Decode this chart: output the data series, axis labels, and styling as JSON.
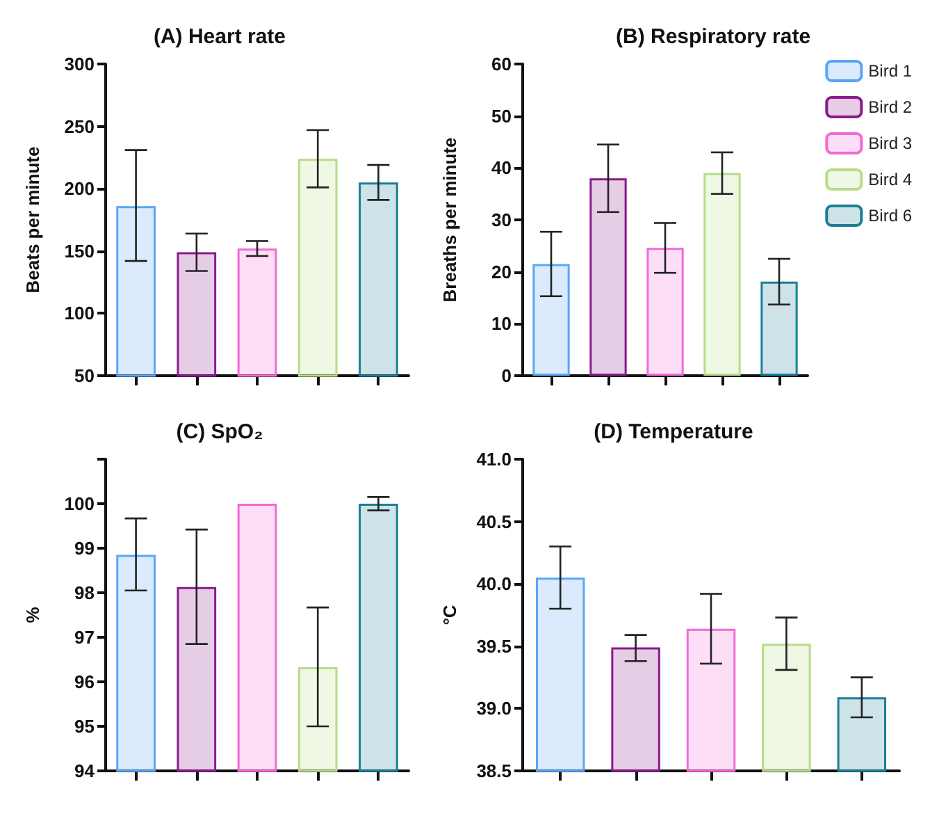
{
  "chart_data": [
    {
      "type": "bar",
      "title": "(A) Heart rate",
      "ylabel": "Beats per minute",
      "categories": [
        null,
        null,
        null,
        null,
        null
      ],
      "ylim": [
        50,
        300
      ],
      "yticks": [
        50,
        100,
        150,
        200,
        250,
        300
      ],
      "grid": false,
      "legend": false,
      "series": [
        {
          "color": "#5aa6f5",
          "values": [
            186,
            null,
            null,
            null,
            null
          ],
          "errors": [
            [
              142,
              231
            ],
            null,
            null,
            null,
            null
          ]
        },
        {
          "color": "#8b1a8b",
          "values": [
            null,
            149,
            null,
            null,
            null
          ],
          "errors": [
            null,
            [
              134,
              164
            ],
            null,
            null,
            null
          ]
        },
        {
          "color": "#f06bd6",
          "values": [
            null,
            null,
            152,
            null,
            null
          ],
          "errors": [
            null,
            null,
            [
              146,
              158
            ],
            null,
            null
          ]
        },
        {
          "color": "#b8dc88",
          "values": [
            null,
            null,
            null,
            224,
            null
          ],
          "errors": [
            null,
            null,
            null,
            [
              201,
              247
            ],
            null
          ]
        },
        {
          "color": "#1a7f96",
          "values": [
            null,
            null,
            null,
            null,
            205
          ],
          "errors": [
            null,
            null,
            null,
            null,
            [
              191,
              219
            ]
          ]
        }
      ]
    },
    {
      "type": "bar",
      "title": "(B) Respiratory rate",
      "ylabel": "Breaths per minute",
      "categories": [
        null,
        null,
        null,
        null,
        null
      ],
      "ylim": [
        0,
        60
      ],
      "yticks": [
        0,
        10,
        20,
        30,
        40,
        50,
        60
      ],
      "grid": false,
      "legend": "right",
      "series": [
        {
          "name": "Bird 1",
          "color": "#5aa6f5",
          "values": [
            21.5,
            null,
            null,
            null,
            null
          ],
          "errors": [
            [
              15.3,
              27.7
            ],
            null,
            null,
            null,
            null
          ]
        },
        {
          "name": "Bird 2",
          "color": "#8b1a8b",
          "values": [
            null,
            38,
            null,
            null,
            null
          ],
          "errors": [
            null,
            [
              31.5,
              44.5
            ],
            null,
            null,
            null
          ]
        },
        {
          "name": "Bird 3",
          "color": "#f06bd6",
          "values": [
            null,
            null,
            24.6,
            null,
            null
          ],
          "errors": [
            null,
            null,
            [
              19.8,
              29.4
            ],
            null,
            null
          ]
        },
        {
          "name": "Bird 4",
          "color": "#b8dc88",
          "values": [
            null,
            null,
            null,
            39,
            null
          ],
          "errors": [
            null,
            null,
            null,
            [
              35,
              43
            ],
            null
          ]
        },
        {
          "name": "Bird 6",
          "color": "#1a7f96",
          "values": [
            null,
            null,
            null,
            null,
            18.1
          ],
          "errors": [
            null,
            null,
            null,
            null,
            [
              13.7,
              22.5
            ]
          ]
        }
      ]
    },
    {
      "type": "bar",
      "title": "(C) SpO₂",
      "ylabel": "%",
      "categories": [
        null,
        null,
        null,
        null,
        null
      ],
      "ylim": [
        94,
        101
      ],
      "yticks": [
        94,
        95,
        96,
        97,
        98,
        99,
        100,
        {
          "value": 101,
          "label": null
        }
      ],
      "grid": false,
      "legend": false,
      "series": [
        {
          "color": "#5aa6f5",
          "values": [
            98.85,
            null,
            null,
            null,
            null
          ],
          "errors": [
            [
              98.05,
              99.67
            ],
            null,
            null,
            null,
            null
          ]
        },
        {
          "color": "#8b1a8b",
          "values": [
            null,
            98.13,
            null,
            null,
            null
          ],
          "errors": [
            null,
            [
              96.85,
              99.42
            ],
            null,
            null,
            null
          ]
        },
        {
          "color": "#f06bd6",
          "values": [
            null,
            null,
            100,
            null,
            null
          ],
          "errors": [
            null,
            null,
            null,
            null,
            null
          ]
        },
        {
          "color": "#b8dc88",
          "values": [
            null,
            null,
            null,
            96.33,
            null
          ],
          "errors": [
            null,
            null,
            null,
            [
              95,
              97.67
            ],
            null
          ]
        },
        {
          "color": "#1a7f96",
          "values": [
            null,
            null,
            null,
            null,
            100
          ],
          "errors": [
            null,
            null,
            null,
            null,
            [
              99.85,
              100.15
            ]
          ]
        }
      ]
    },
    {
      "type": "bar",
      "title": "(D) Temperature",
      "ylabel": "°C",
      "categories": [
        null,
        null,
        null,
        null,
        null
      ],
      "ylim": [
        38.5,
        41
      ],
      "yticks": [
        {
          "value": 38.5,
          "label": "38.5"
        },
        {
          "value": 39,
          "label": "39.0"
        },
        {
          "value": 39.5,
          "label": "39.5"
        },
        {
          "value": 40,
          "label": "40.0"
        },
        {
          "value": 40.5,
          "label": "40.5"
        },
        {
          "value": 41,
          "label": "41.0"
        }
      ],
      "grid": false,
      "legend": false,
      "series": [
        {
          "color": "#5aa6f5",
          "values": [
            40.05,
            null,
            null,
            null,
            null
          ],
          "errors": [
            [
              39.8,
              40.3
            ],
            null,
            null,
            null,
            null
          ]
        },
        {
          "color": "#8b1a8b",
          "values": [
            null,
            39.49,
            null,
            null,
            null
          ],
          "errors": [
            null,
            [
              39.38,
              39.59
            ],
            null,
            null,
            null
          ]
        },
        {
          "color": "#f06bd6",
          "values": [
            null,
            null,
            39.64,
            null,
            null
          ],
          "errors": [
            null,
            null,
            [
              39.36,
              39.92
            ],
            null,
            null
          ]
        },
        {
          "color": "#b8dc88",
          "values": [
            null,
            null,
            null,
            39.52,
            null
          ],
          "errors": [
            null,
            null,
            null,
            [
              39.31,
              39.73
            ],
            null
          ]
        },
        {
          "color": "#1a7f96",
          "values": [
            null,
            null,
            null,
            null,
            39.09
          ],
          "errors": [
            null,
            null,
            null,
            null,
            [
              38.93,
              39.25
            ]
          ]
        }
      ]
    }
  ]
}
